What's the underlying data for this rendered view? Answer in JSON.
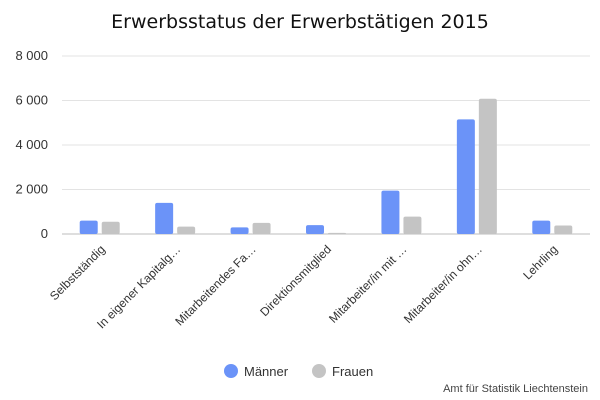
{
  "chart_data": {
    "type": "bar",
    "title": "Erwerbsstatus der Erwerbstätigen 2015",
    "xlabel": "",
    "ylabel": "",
    "ylim": [
      0,
      8000
    ],
    "yticks": [
      0,
      2000,
      4000,
      6000,
      8000
    ],
    "ytick_labels": [
      "0",
      "2 000",
      "4 000",
      "6 000",
      "8 000"
    ],
    "grid": true,
    "legend_position": "bottom-center",
    "categories": [
      "Selbstständig",
      "In eigener Kapitalg…",
      "Mitarbeitendes Fa…",
      "Direktionsmitglied",
      "Mitarbeiter/in mit …",
      "Mitarbeiter/in ohn…",
      "Lehrling"
    ],
    "series": [
      {
        "name": "Männer",
        "color": "#6b93f8",
        "values": [
          600,
          1400,
          300,
          400,
          1950,
          5150,
          600
        ]
      },
      {
        "name": "Frauen",
        "color": "#c4c4c4",
        "values": [
          550,
          330,
          500,
          50,
          780,
          6080,
          380
        ]
      }
    ],
    "source": "Amt für Statistik Liechtenstein"
  }
}
